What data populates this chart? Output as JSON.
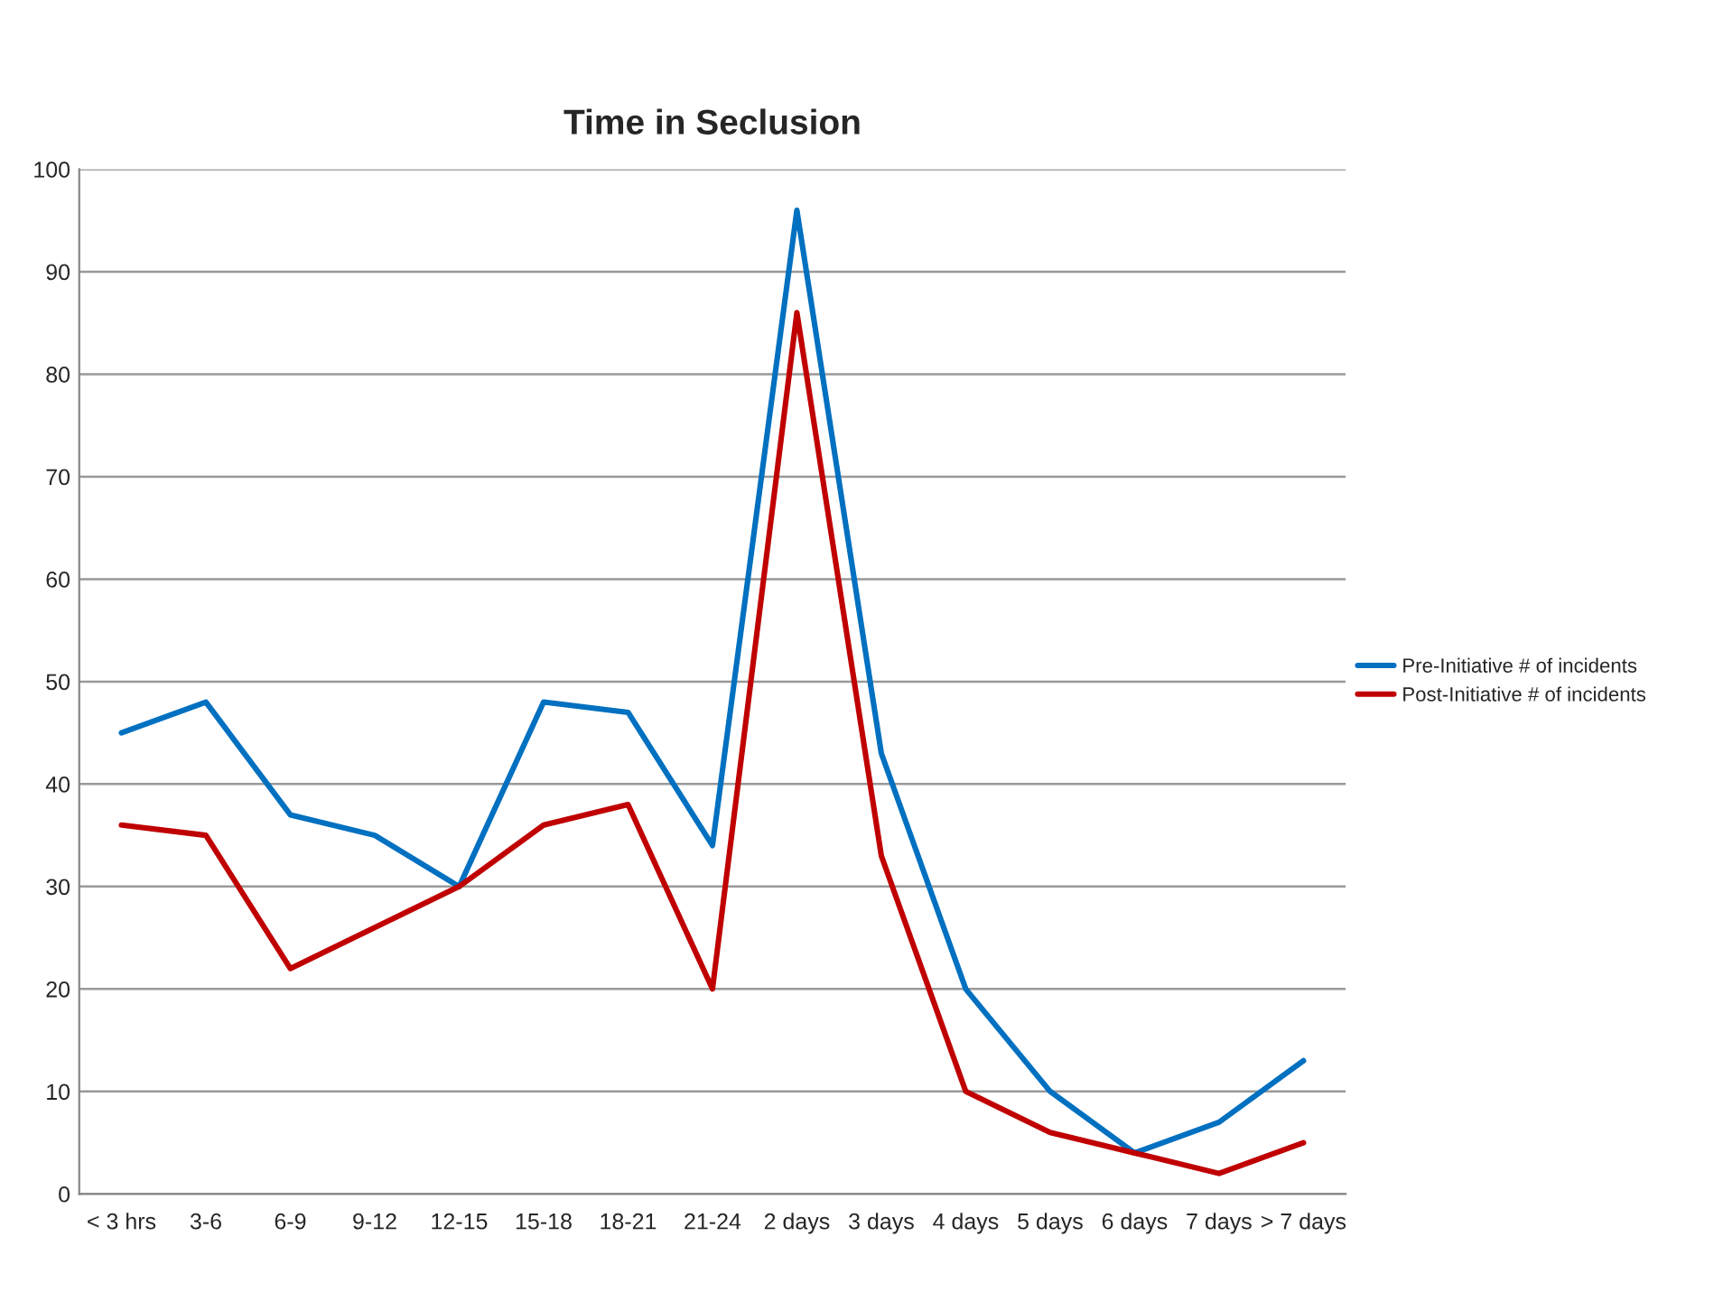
{
  "chart_data": {
    "type": "line",
    "title": "Time in Seclusion",
    "categories": [
      "< 3 hrs",
      "3-6",
      "6-9",
      "9-12",
      "12-15",
      "15-18",
      "18-21",
      "21-24",
      "2 days",
      "3 days",
      "4 days",
      "5 days",
      "6 days",
      "7 days",
      "> 7 days"
    ],
    "series": [
      {
        "name": "Pre-Initiative # of incidents",
        "color": "#0070c0",
        "values": [
          45,
          48,
          37,
          35,
          30,
          48,
          47,
          34,
          96,
          43,
          20,
          10,
          4,
          7,
          13
        ]
      },
      {
        "name": "Post-Initiative # of incidents",
        "color": "#c00000",
        "values": [
          36,
          35,
          22,
          26,
          30,
          36,
          38,
          20,
          86,
          33,
          10,
          6,
          4,
          2,
          5
        ]
      }
    ],
    "ylim": [
      0,
      100
    ],
    "yticks": [
      0,
      10,
      20,
      30,
      40,
      50,
      60,
      70,
      80,
      90,
      100
    ],
    "grid": "y",
    "legend": "right",
    "marker": "none",
    "line_style": "solid"
  }
}
